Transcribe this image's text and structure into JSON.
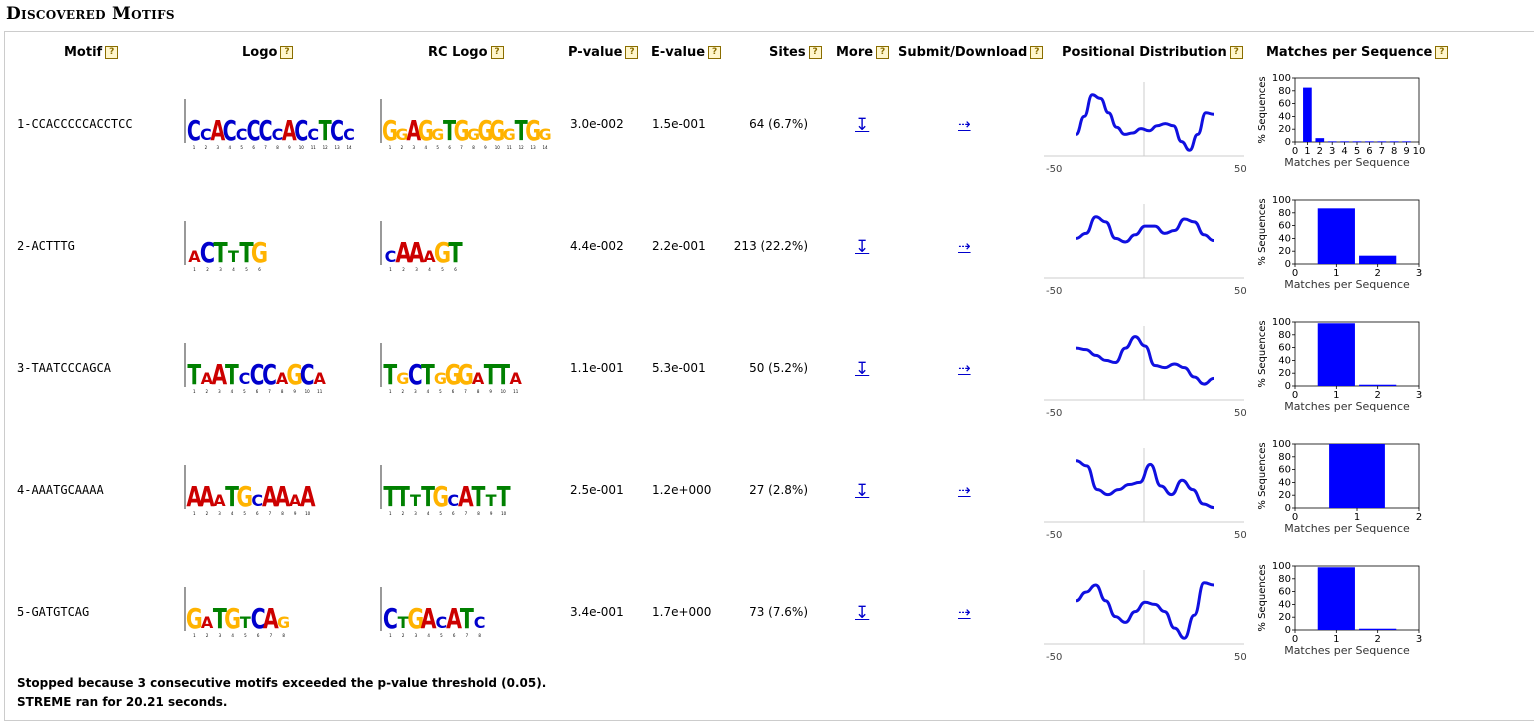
{
  "page_title": "Discovered Motifs",
  "headers": {
    "motif": "Motif",
    "logo": "Logo",
    "rc_logo": "RC Logo",
    "pvalue": "P-value",
    "evalue": "E-value",
    "sites": "Sites",
    "more": "More",
    "submit": "Submit/Download",
    "positional": "Positional Distribution",
    "matches": "Matches per Sequence"
  },
  "help_glyph": "?",
  "more_glyph": "↧",
  "submit_glyph": "⇢",
  "colors": {
    "line": "#1010e0",
    "bar": "#0000ff",
    "A": "#cc0000",
    "C": "#0000cc",
    "G": "#ffb300",
    "T": "#008000"
  },
  "pos_axis": {
    "min": "-50",
    "max": "50"
  },
  "match_ylabel": "% Sequences",
  "match_xlabel": "Matches per Sequence",
  "match_yticks": [
    "0",
    "20",
    "40",
    "60",
    "80",
    "100"
  ],
  "motifs": [
    {
      "id": "1-CCACCCCCACCTCC",
      "logo": "CCACCCCCACCTCC",
      "rc_logo": "GGAGGTGGGGGTGG",
      "pvalue": "3.0e-002",
      "evalue": "1.5e-001",
      "sites": "64 (6.7%)",
      "positional": [
        0.3,
        0.55,
        0.85,
        0.8,
        0.6,
        0.4,
        0.3,
        0.32,
        0.38,
        0.35,
        0.42,
        0.45,
        0.42,
        0.2,
        0.08,
        0.3,
        0.6,
        0.58
      ],
      "matches_xticks": [
        "0",
        "1",
        "2",
        "3",
        "4",
        "5",
        "6",
        "7",
        "8",
        "9",
        "10"
      ],
      "matches_values": [
        0,
        85,
        6,
        1,
        1,
        1,
        1,
        1,
        1,
        1,
        0
      ],
      "matches_max": 10
    },
    {
      "id": "2-ACTTTG",
      "logo": "ACTTTG",
      "rc_logo": "CAAAGT",
      "pvalue": "4.4e-002",
      "evalue": "2.2e-001",
      "sites": "213 (22.2%)",
      "positional": [
        0.55,
        0.62,
        0.85,
        0.78,
        0.55,
        0.5,
        0.6,
        0.72,
        0.72,
        0.62,
        0.66,
        0.82,
        0.78,
        0.6,
        0.52
      ],
      "matches_xticks": [
        "0",
        "1",
        "2",
        "3"
      ],
      "matches_values": [
        0,
        87,
        13,
        0
      ],
      "matches_max": 3
    },
    {
      "id": "3-TAATCCCAGCA",
      "logo": "TAATCCCAGCA",
      "rc_logo": "TGCTGGGATTA",
      "pvalue": "1.1e-001",
      "evalue": "5.3e-001",
      "sites": "50 (5.2%)",
      "positional": [
        0.72,
        0.7,
        0.62,
        0.55,
        0.52,
        0.72,
        0.88,
        0.75,
        0.48,
        0.45,
        0.5,
        0.45,
        0.32,
        0.22,
        0.3
      ],
      "matches_xticks": [
        "0",
        "1",
        "2",
        "3"
      ],
      "matches_values": [
        0,
        98,
        2,
        0
      ],
      "matches_max": 3
    },
    {
      "id": "4-AAATGCAAAA",
      "logo": "AAATGCAAAA",
      "rc_logo": "TTTTGCATTT",
      "pvalue": "2.5e-001",
      "evalue": "1.2e+000",
      "sites": "27 (2.8%)",
      "positional": [
        0.85,
        0.78,
        0.45,
        0.38,
        0.45,
        0.52,
        0.55,
        0.8,
        0.5,
        0.38,
        0.58,
        0.45,
        0.25,
        0.2
      ],
      "matches_xticks": [
        "0",
        "1",
        "2"
      ],
      "matches_values": [
        0,
        100,
        0
      ],
      "matches_max": 2
    },
    {
      "id": "5-GATGTCAG",
      "logo": "GATGTCAG",
      "rc_logo": "CTGACATC",
      "pvalue": "3.4e-001",
      "evalue": "1.7e+000",
      "sites": "73 (7.6%)",
      "positional": [
        0.6,
        0.72,
        0.82,
        0.6,
        0.38,
        0.3,
        0.45,
        0.58,
        0.55,
        0.45,
        0.22,
        0.08,
        0.4,
        0.85,
        0.82
      ],
      "matches_xticks": [
        "0",
        "1",
        "2",
        "3"
      ],
      "matches_values": [
        0,
        98,
        2,
        0
      ],
      "matches_max": 3
    }
  ],
  "footer_line1": "Stopped because 3 consecutive motifs exceeded the p-value threshold (0.05).",
  "footer_line2": "STREME ran for 20.21 seconds."
}
